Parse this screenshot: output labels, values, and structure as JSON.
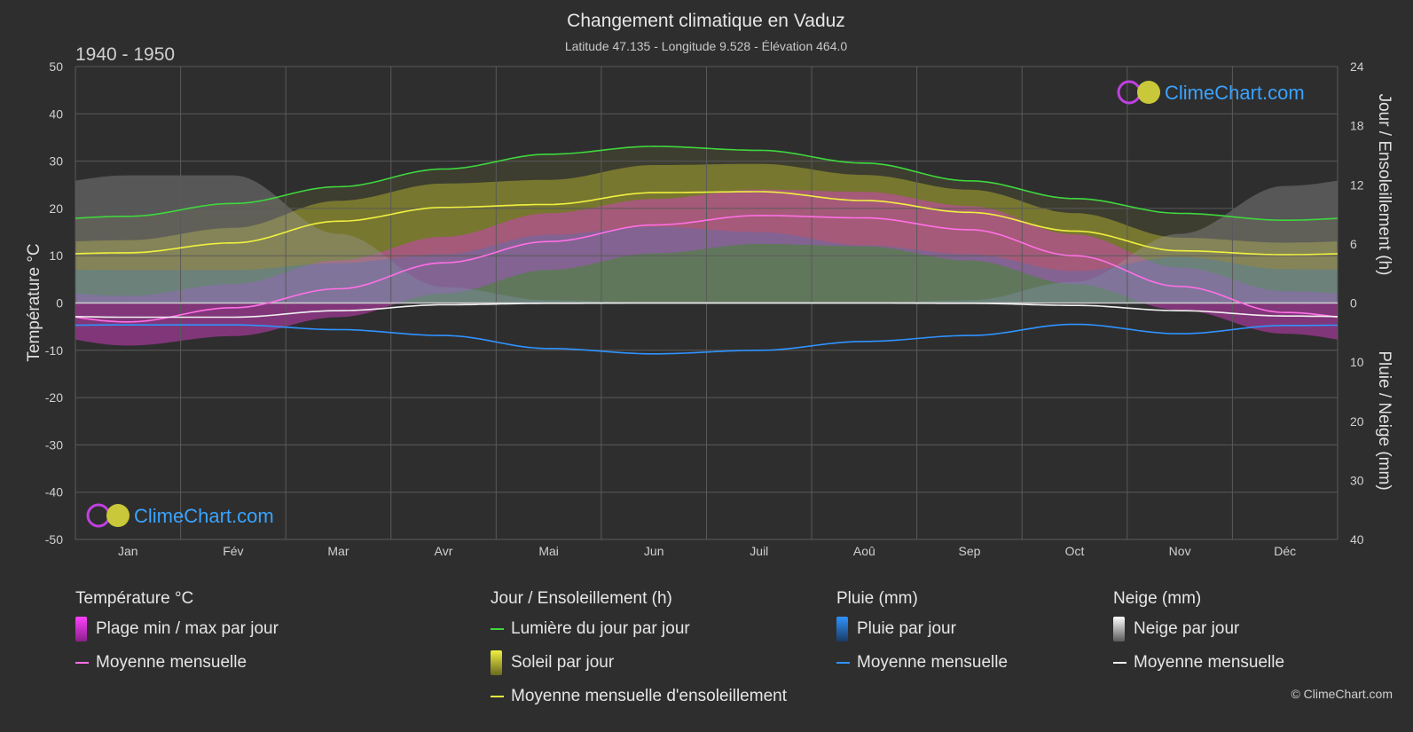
{
  "header": {
    "title": "Changement climatique en Vaduz",
    "subtitle": "Latitude 47.135 - Longitude 9.528 - Élévation 464.0",
    "period": "1940 - 1950"
  },
  "branding": {
    "logo_text": "ClimeChart.com",
    "copyright": "© ClimeChart.com"
  },
  "colors": {
    "background": "#2e2e2e",
    "temp_band": "#d43dc4",
    "temp_mean": "#ff6fe6",
    "daylight": "#3ed83e",
    "sunshine_band": "#a8a830",
    "sunshine_mean": "#f0f040",
    "rain": "#2a7ad4",
    "rain_mean": "#2f93ff",
    "snow": "#9a9a9a",
    "snow_mean": "#f0f0f0",
    "logo_text": "#3aa3ff"
  },
  "chart_data": {
    "type": "line",
    "categories": [
      "Jan",
      "Fév",
      "Mar",
      "Avr",
      "Mai",
      "Jun",
      "Juil",
      "Aoû",
      "Sep",
      "Oct",
      "Nov",
      "Déc"
    ],
    "axes": {
      "left": {
        "label": "Température °C",
        "min": -50,
        "max": 50,
        "ticks": [
          50,
          40,
          30,
          20,
          10,
          0,
          -10,
          -20,
          -30,
          -40,
          -50
        ]
      },
      "right_top": {
        "label": "Jour / Ensoleillement (h)",
        "min": 0,
        "max": 24,
        "ticks": [
          24,
          18,
          12,
          6,
          0
        ]
      },
      "right_bottom": {
        "label": "Pluie / Neige (mm)",
        "min": 0,
        "max": 40,
        "ticks": [
          0,
          10,
          20,
          30,
          40
        ]
      }
    },
    "grid": true,
    "series": [
      {
        "name": "Lumière du jour par jour",
        "unit": "h",
        "values": [
          8.8,
          10.1,
          11.8,
          13.6,
          15.1,
          15.9,
          15.5,
          14.2,
          12.4,
          10.6,
          9.1,
          8.4
        ]
      },
      {
        "name": "Moyenne mensuelle d'ensoleillement",
        "unit": "h",
        "values": [
          5.1,
          6.1,
          8.3,
          9.7,
          10.0,
          11.2,
          11.3,
          10.4,
          9.2,
          7.3,
          5.3,
          4.9
        ]
      },
      {
        "name": "Temp max (plage)",
        "unit": "°C",
        "values": [
          1.5,
          4.0,
          9.0,
          14.0,
          19.0,
          22.0,
          24.0,
          23.5,
          20.5,
          14.5,
          7.5,
          2.5
        ]
      },
      {
        "name": "Temp min (plage)",
        "unit": "°C",
        "values": [
          -9.0,
          -7.0,
          -3.0,
          2.0,
          7.0,
          10.5,
          12.5,
          12.0,
          9.0,
          4.0,
          -1.5,
          -6.5
        ]
      },
      {
        "name": "Moyenne mensuelle",
        "unit": "°C",
        "values": [
          -4.0,
          -1.0,
          3.0,
          8.5,
          13.0,
          16.5,
          18.5,
          18.0,
          15.5,
          10.0,
          3.5,
          -2.0
        ]
      },
      {
        "name": "Pluie moyenne mensuelle",
        "unit": "mm",
        "values": [
          3.7,
          3.7,
          4.5,
          5.5,
          7.7,
          8.6,
          8.0,
          6.5,
          5.5,
          3.6,
          5.2,
          3.8
        ]
      },
      {
        "name": "Neige moyenne mensuelle",
        "unit": "mm",
        "values": [
          2.4,
          2.4,
          1.3,
          0.3,
          0.05,
          0.0,
          0.0,
          0.0,
          0.05,
          0.4,
          1.3,
          2.2
        ]
      }
    ]
  },
  "legend": {
    "temperature": {
      "title": "Température °C",
      "items": [
        "Plage min / max par jour",
        "Moyenne mensuelle"
      ]
    },
    "daylight": {
      "title": "Jour / Ensoleillement (h)",
      "items": [
        "Lumière du jour par jour",
        "Soleil par jour",
        "Moyenne mensuelle d'ensoleillement"
      ]
    },
    "rain": {
      "title": "Pluie (mm)",
      "items": [
        "Pluie par jour",
        "Moyenne mensuelle"
      ]
    },
    "snow": {
      "title": "Neige (mm)",
      "items": [
        "Neige par jour",
        "Moyenne mensuelle"
      ]
    }
  }
}
